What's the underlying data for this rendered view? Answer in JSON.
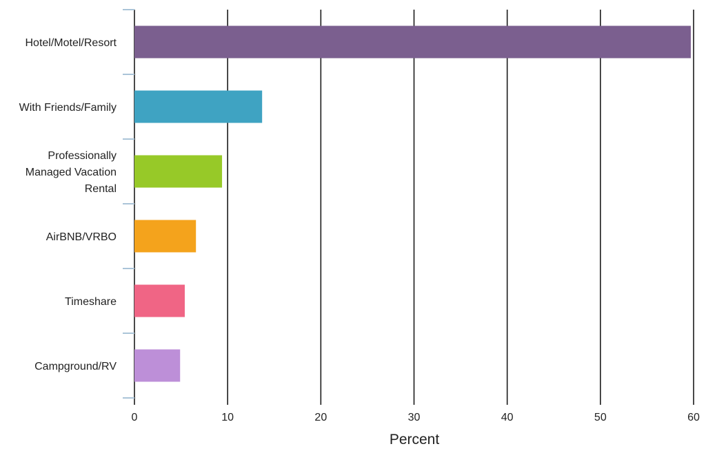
{
  "chart_data": {
    "type": "bar",
    "orientation": "horizontal",
    "categories": [
      [
        "Hotel/Motel/Resort"
      ],
      [
        "With Friends/Family"
      ],
      [
        "Professionally",
        "Managed Vacation",
        "Rental"
      ],
      [
        "AirBNB/VRBO"
      ],
      [
        "Timeshare"
      ],
      [
        "Campground/RV"
      ]
    ],
    "values": [
      59.7,
      13.7,
      9.4,
      6.6,
      5.4,
      4.9
    ],
    "colors": [
      "#7b5f8f",
      "#3fa3c2",
      "#97c928",
      "#f4a31c",
      "#f06585",
      "#bd8fd8"
    ],
    "xlabel": "Percent",
    "ylabel": "",
    "title": "",
    "xlim": [
      0,
      60
    ],
    "xticks": [
      "0",
      "10",
      "20",
      "30",
      "40",
      "50",
      "60"
    ],
    "grid": true,
    "legend": false
  }
}
